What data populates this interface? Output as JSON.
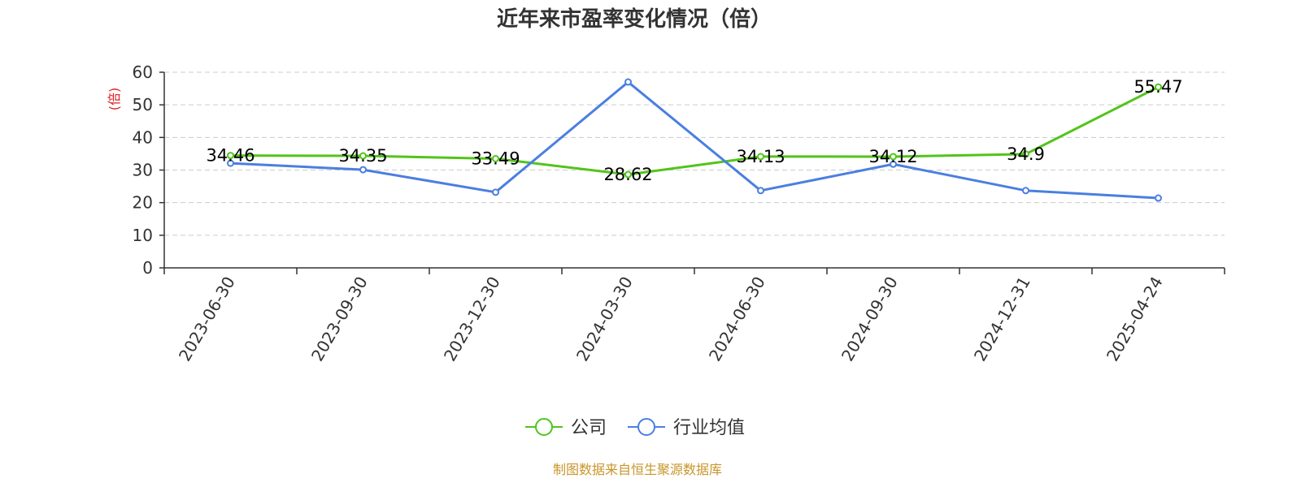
{
  "chart_data": {
    "type": "line",
    "title": "近年来市盈率变化情况（倍）",
    "ylabel": "(倍)",
    "xlabel": "",
    "categories": [
      "2023-06-30",
      "2023-09-30",
      "2023-12-30",
      "2024-03-30",
      "2024-06-30",
      "2024-09-30",
      "2024-12-31",
      "2025-04-24"
    ],
    "ylim": [
      0,
      60
    ],
    "yticks": [
      0,
      10,
      20,
      30,
      40,
      50,
      60
    ],
    "grid": true,
    "legend_position": "bottom-center",
    "series": [
      {
        "name": "公司",
        "color": "#52c41a",
        "values": [
          34.46,
          34.35,
          33.49,
          28.62,
          34.13,
          34.12,
          34.9,
          55.47
        ],
        "labels": [
          "34.46",
          "34.35",
          "33.49",
          "28.62",
          "34.13",
          "34.12",
          "34.9",
          "55.47"
        ],
        "show_labels": true
      },
      {
        "name": "行业均值",
        "color": "#4a7fe0",
        "values": [
          32.1,
          30.1,
          23.2,
          57.0,
          23.7,
          31.8,
          23.7,
          21.4
        ],
        "show_labels": false
      }
    ]
  },
  "source_note": "制图数据来自恒生聚源数据库"
}
